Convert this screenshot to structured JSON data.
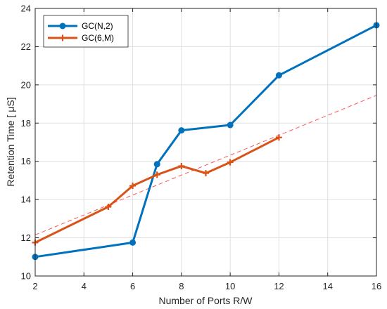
{
  "chart_data": {
    "type": "line",
    "xlabel": "Number of Ports R/W",
    "ylabel": "Retention Time [   μS]",
    "xlim": [
      2,
      16
    ],
    "ylim": [
      10,
      24
    ],
    "xticks": [
      2,
      4,
      6,
      8,
      10,
      12,
      14,
      16
    ],
    "yticks": [
      10,
      12,
      14,
      16,
      18,
      20,
      22,
      24
    ],
    "grid": true,
    "legend_position": "top-left",
    "series": [
      {
        "name": "GC(N,2)",
        "color": "#0072BD",
        "marker": "circle",
        "x": [
          2,
          6,
          7,
          8,
          10,
          12,
          16
        ],
        "y": [
          11.0,
          11.75,
          15.85,
          17.62,
          17.9,
          20.5,
          23.12
        ]
      },
      {
        "name": "GC(6,M)",
        "color": "#D95319",
        "marker": "plus",
        "x": [
          2,
          5,
          6,
          7,
          8,
          9,
          10,
          12
        ],
        "y": [
          11.75,
          13.62,
          14.72,
          15.3,
          15.75,
          15.38,
          15.95,
          17.25
        ]
      }
    ],
    "trendline": {
      "color": "#FF5555",
      "style": "dashed",
      "x": [
        2,
        16
      ],
      "y": [
        12.15,
        19.45
      ]
    }
  }
}
